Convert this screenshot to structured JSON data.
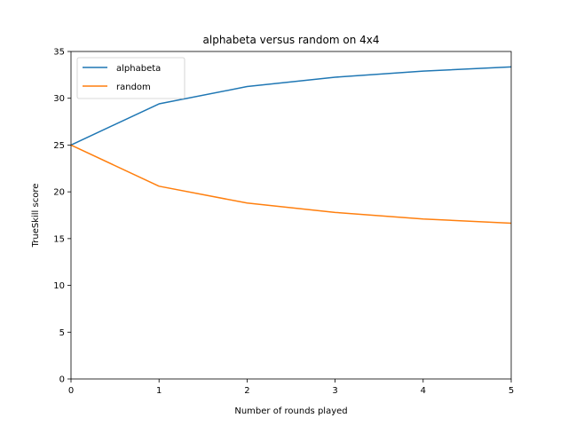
{
  "chart_data": {
    "type": "line",
    "title": "alphabeta versus random on 4x4",
    "xlabel": "Number of rounds played",
    "ylabel": "TrueSkill score",
    "x": [
      0,
      1,
      2,
      3,
      4,
      5
    ],
    "xlim": [
      0,
      5
    ],
    "ylim": [
      0,
      35
    ],
    "xticks": [
      "0",
      "1",
      "2",
      "3",
      "4",
      "5"
    ],
    "yticks": [
      "0",
      "5",
      "10",
      "15",
      "20",
      "25",
      "30",
      "35"
    ],
    "grid": false,
    "legend_position": "top-left",
    "series": [
      {
        "name": "alphabeta",
        "color": "#1f77b4",
        "values": [
          25.0,
          29.4,
          31.25,
          32.25,
          32.9,
          33.35
        ]
      },
      {
        "name": "random",
        "color": "#ff7f0e",
        "values": [
          25.0,
          20.6,
          18.8,
          17.8,
          17.1,
          16.65
        ]
      }
    ]
  }
}
